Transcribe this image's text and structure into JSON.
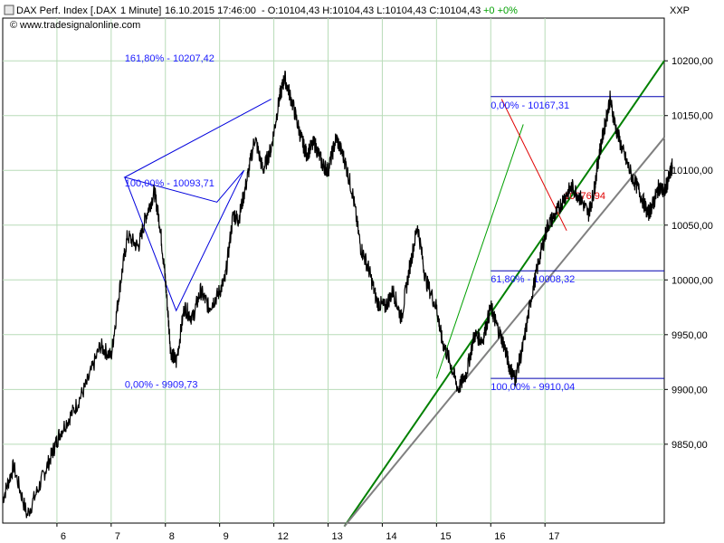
{
  "header": {
    "instrument": "DAX Perf. Index [.DAX",
    "interval": "1 Minute]",
    "datetime": "16.10.2015 17:46:00",
    "ohlc": "- O:10104,43 H:10104,43 L:10104,43 C:10104,43",
    "change": "+0 +0%",
    "source": "www.tradesignalonline.com",
    "axis_label": "XXP"
  },
  "colors": {
    "price": "#000000",
    "grid": "#b8dcb8",
    "fib_line": "#0000b0",
    "fib_text": "#1a1aff",
    "abc_line": "#0000dd",
    "green_trend": "#008000",
    "thin_green": "#00a000",
    "gray_trend": "#808080",
    "red_trend": "#e00000"
  },
  "chart_data": {
    "type": "line",
    "series": [
      {
        "values": [
          [
            5.0,
            9800
          ],
          [
            5.2,
            9830
          ],
          [
            5.45,
            9785
          ],
          [
            5.7,
            9815
          ],
          [
            5.9,
            9840
          ],
          [
            6.05,
            9860
          ],
          [
            6.3,
            9880
          ],
          [
            6.55,
            9905
          ],
          [
            6.8,
            9940
          ],
          [
            7.0,
            9930
          ],
          [
            7.15,
            9990
          ],
          [
            7.3,
            10040
          ],
          [
            7.5,
            10030
          ],
          [
            7.65,
            10060
          ],
          [
            7.8,
            10080
          ],
          [
            7.9,
            10050
          ],
          [
            8.0,
            10000
          ],
          [
            8.1,
            9935
          ],
          [
            8.2,
            9925
          ],
          [
            8.35,
            9975
          ],
          [
            8.5,
            9965
          ],
          [
            8.65,
            9990
          ],
          [
            8.8,
            9975
          ],
          [
            8.95,
            9985
          ],
          [
            9.1,
            10000
          ],
          [
            9.25,
            10060
          ],
          [
            9.35,
            10055
          ],
          [
            9.5,
            10090
          ],
          [
            9.65,
            10130
          ],
          [
            9.8,
            10100
          ],
          [
            9.95,
            10120
          ],
          [
            10.1,
            10165
          ],
          [
            10.2,
            10185
          ],
          [
            10.35,
            10160
          ],
          [
            10.5,
            10130
          ],
          [
            10.6,
            10115
          ],
          [
            10.75,
            10125
          ],
          [
            10.9,
            10105
          ],
          [
            11.0,
            10100
          ],
          [
            11.15,
            10130
          ],
          [
            11.3,
            10110
          ],
          [
            11.45,
            10080
          ],
          [
            11.6,
            10030
          ],
          [
            11.75,
            10010
          ],
          [
            11.9,
            9980
          ],
          [
            12.05,
            9975
          ],
          [
            12.2,
            9990
          ],
          [
            12.35,
            9965
          ],
          [
            12.5,
            10010
          ],
          [
            12.65,
            10050
          ],
          [
            12.8,
            10000
          ],
          [
            13.0,
            9975
          ],
          [
            13.1,
            9945
          ],
          [
            13.25,
            9925
          ],
          [
            13.4,
            9900
          ],
          [
            13.55,
            9915
          ],
          [
            13.7,
            9950
          ],
          [
            13.85,
            9945
          ],
          [
            14.0,
            9975
          ],
          [
            14.1,
            9960
          ],
          [
            14.25,
            9940
          ],
          [
            14.35,
            9920
          ],
          [
            14.45,
            9910
          ],
          [
            14.6,
            9940
          ],
          [
            14.75,
            9985
          ],
          [
            14.9,
            10020
          ],
          [
            15.05,
            10050
          ],
          [
            15.2,
            10060
          ],
          [
            15.35,
            10075
          ],
          [
            15.5,
            10085
          ],
          [
            15.65,
            10075
          ],
          [
            15.8,
            10060
          ],
          [
            15.9,
            10080
          ],
          [
            16.0,
            10115
          ],
          [
            16.1,
            10140
          ],
          [
            16.2,
            10165
          ],
          [
            16.3,
            10140
          ],
          [
            16.45,
            10115
          ],
          [
            16.6,
            10095
          ],
          [
            16.75,
            10080
          ],
          [
            16.9,
            10060
          ],
          [
            17.0,
            10070
          ],
          [
            17.1,
            10085
          ],
          [
            17.2,
            10080
          ],
          [
            17.3,
            10095
          ],
          [
            17.35,
            10104
          ]
        ]
      }
    ],
    "x_ticks": [
      {
        "label": "6",
        "x": 6.0
      },
      {
        "label": "7",
        "x": 7.0
      },
      {
        "label": "8",
        "x": 8.0
      },
      {
        "label": "9",
        "x": 9.0
      },
      {
        "label": "12",
        "x": 10.0
      },
      {
        "label": "13",
        "x": 11.0
      },
      {
        "label": "14",
        "x": 12.0
      },
      {
        "label": "15",
        "x": 13.0
      },
      {
        "label": "16",
        "x": 14.0
      },
      {
        "label": "17",
        "x": 15.0
      }
    ],
    "y_ticks": [
      {
        "label": "9850,00",
        "y": 9850
      },
      {
        "label": "9900,00",
        "y": 9900
      },
      {
        "label": "9950,00",
        "y": 9950
      },
      {
        "label": "10000,00",
        "y": 10000
      },
      {
        "label": "10050,00",
        "y": 10050
      },
      {
        "label": "10100,00",
        "y": 10100
      },
      {
        "label": "10150,00",
        "y": 10150
      },
      {
        "label": "10200,00",
        "y": 10200
      }
    ],
    "ylim": [
      9778,
      10239
    ],
    "xlim": [
      5.0,
      17.2
    ],
    "grid": true,
    "annotations": {
      "fib_left": [
        {
          "label": "161,80% - 10207,42",
          "y": 10207.42,
          "x": 7.25
        },
        {
          "label": "100,00% - 10093,71",
          "y": 10093.71,
          "x": 7.25
        },
        {
          "label": "0,00% - 9909,73",
          "y": 9909.73,
          "x": 7.25
        }
      ],
      "fib_right": [
        {
          "label": "0,00% - 10167,31",
          "y": 10167.31,
          "x": 14.0,
          "x_end": 17.2
        },
        {
          "label": "61,80% - 10008,32",
          "y": 10008.32,
          "x": 14.0,
          "x_end": 17.2
        },
        {
          "label": "100,00% - 9910,04",
          "y": 9910.04,
          "x": 14.0,
          "x_end": 17.2
        }
      ],
      "red_label": {
        "label": "10076,94",
        "y": 10076.94,
        "x": 15.35
      },
      "abc_pattern": [
        [
          7.25,
          10093.71
        ],
        [
          8.2,
          9972
        ],
        [
          9.45,
          10100
        ],
        [
          8.95,
          10071
        ],
        [
          7.25,
          10093.71
        ],
        [
          9.95,
          10165
        ]
      ],
      "trendlines": [
        {
          "kind": "green",
          "from": [
            11.3,
            9775
          ],
          "to": [
            17.2,
            10200
          ]
        },
        {
          "kind": "gray",
          "from": [
            11.3,
            9775
          ],
          "to": [
            17.2,
            10130
          ]
        },
        {
          "kind": "thin_green",
          "from": [
            13.0,
            9910
          ],
          "to": [
            14.6,
            10142
          ]
        },
        {
          "kind": "red",
          "from": [
            14.2,
            10165
          ],
          "to": [
            15.4,
            10045
          ]
        }
      ]
    }
  }
}
